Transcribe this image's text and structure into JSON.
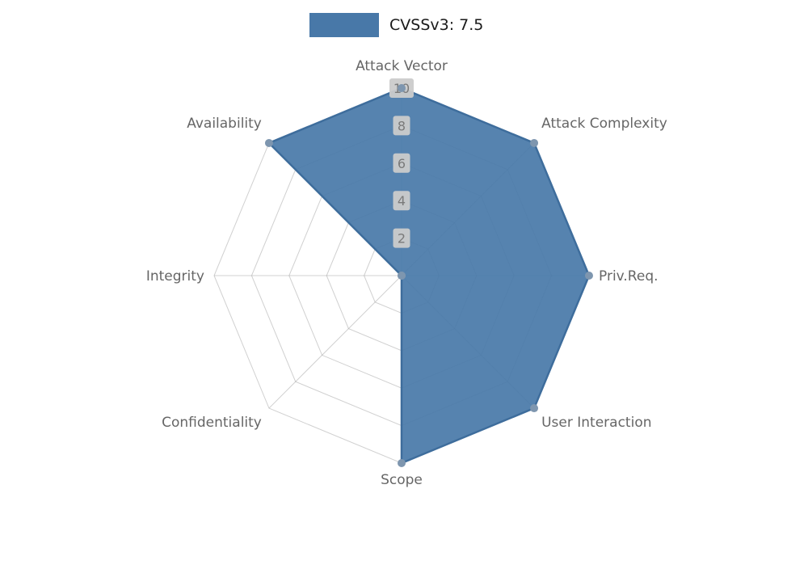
{
  "legend": {
    "label": "CVSSv3: 7.5",
    "swatch_color": "#4878A8"
  },
  "chart_data": {
    "type": "radar",
    "title": "CVSSv3: 7.5",
    "categories": [
      "Attack Vector",
      "Attack Complexity",
      "Priv.Req.",
      "User Interaction",
      "Scope",
      "Confidentiality",
      "Integrity",
      "Availability"
    ],
    "series": [
      {
        "name": "CVSSv3: 7.5",
        "values": [
          10,
          10,
          10,
          10,
          10,
          0,
          0,
          10
        ]
      }
    ],
    "radial_ticks": [
      2,
      4,
      6,
      8,
      10
    ],
    "rlim": [
      0,
      10
    ],
    "grid": true,
    "legend_position": "top-center",
    "style": {
      "fill_color": "#4878A8",
      "fill_opacity": 0.92,
      "line_color": "#3E6D9C",
      "marker_color": "#7E96AF",
      "grid_color": "#AAAAAA",
      "axis_label_color": "#666666",
      "tick_label_color": "#7A7A7A",
      "tick_label_bg": "#CBCBCB"
    }
  }
}
